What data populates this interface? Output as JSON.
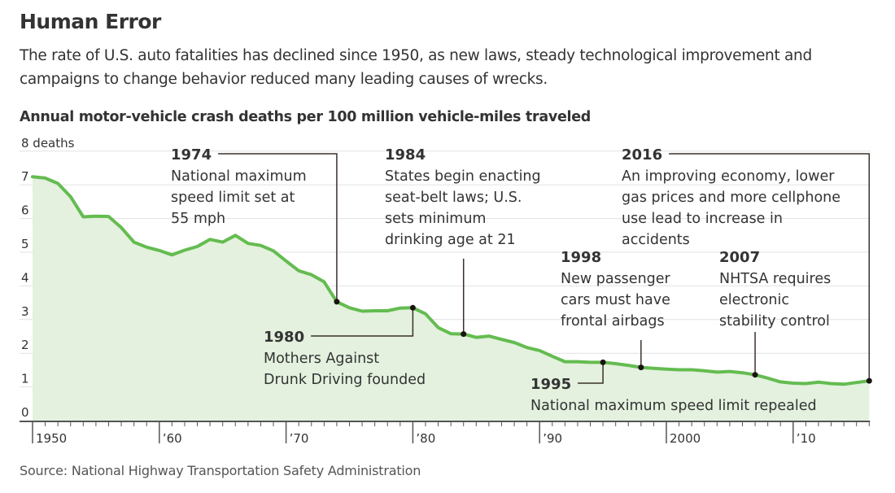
{
  "header": {
    "title": "Human Error",
    "subtitle": "The rate of U.S. auto fatalities has declined since 1950, as new laws, steady technological improvement and campaigns to change behavior reduced many leading causes of wrecks."
  },
  "footer": {
    "source": "Source: National Highway Transportation Safety Administration"
  },
  "colors": {
    "line": "#64bc50",
    "area": "#e3f1de",
    "annotation": "#3a302c",
    "grid": "#e2e2e2"
  },
  "chart_data": {
    "type": "area",
    "title": "Annual motor-vehicle crash deaths per 100 million vehicle-miles traveled",
    "xlabel": "",
    "ylabel": "",
    "xlim": [
      1950,
      2016
    ],
    "ylim": [
      0,
      8
    ],
    "grid": true,
    "y_ticks": [
      {
        "value": 0,
        "label": "0"
      },
      {
        "value": 1,
        "label": "1"
      },
      {
        "value": 2,
        "label": "2"
      },
      {
        "value": 3,
        "label": "3"
      },
      {
        "value": 4,
        "label": "4"
      },
      {
        "value": 5,
        "label": "5"
      },
      {
        "value": 6,
        "label": "6"
      },
      {
        "value": 7,
        "label": "7"
      },
      {
        "value": 8,
        "label": "8 deaths"
      }
    ],
    "x_ticks": [
      {
        "value": 1950,
        "label": "1950"
      },
      {
        "value": 1960,
        "label": "’60"
      },
      {
        "value": 1970,
        "label": "’70"
      },
      {
        "value": 1980,
        "label": "’80"
      },
      {
        "value": 1990,
        "label": "’90"
      },
      {
        "value": 2000,
        "label": "2000"
      },
      {
        "value": 2010,
        "label": "’10"
      }
    ],
    "x": [
      1950,
      1951,
      1952,
      1953,
      1954,
      1955,
      1956,
      1957,
      1958,
      1959,
      1960,
      1961,
      1962,
      1963,
      1964,
      1965,
      1966,
      1967,
      1968,
      1969,
      1970,
      1971,
      1972,
      1973,
      1974,
      1975,
      1976,
      1977,
      1978,
      1979,
      1980,
      1981,
      1982,
      1983,
      1984,
      1985,
      1986,
      1987,
      1988,
      1989,
      1990,
      1991,
      1992,
      1993,
      1994,
      1995,
      1996,
      1997,
      1998,
      1999,
      2000,
      2001,
      2002,
      2003,
      2004,
      2005,
      2006,
      2007,
      2008,
      2009,
      2010,
      2011,
      2012,
      2013,
      2014,
      2015,
      2016
    ],
    "series": [
      {
        "name": "Deaths per 100 million vehicle-miles",
        "values": [
          7.24,
          7.2,
          7.04,
          6.65,
          6.05,
          6.07,
          6.06,
          5.73,
          5.3,
          5.15,
          5.05,
          4.92,
          5.06,
          5.17,
          5.38,
          5.3,
          5.5,
          5.26,
          5.2,
          5.04,
          4.74,
          4.45,
          4.33,
          4.12,
          3.53,
          3.35,
          3.25,
          3.26,
          3.26,
          3.34,
          3.35,
          3.17,
          2.76,
          2.58,
          2.57,
          2.47,
          2.51,
          2.41,
          2.32,
          2.17,
          2.08,
          1.91,
          1.75,
          1.75,
          1.73,
          1.73,
          1.69,
          1.64,
          1.58,
          1.55,
          1.53,
          1.51,
          1.51,
          1.48,
          1.44,
          1.46,
          1.42,
          1.36,
          1.26,
          1.15,
          1.11,
          1.1,
          1.14,
          1.1,
          1.08,
          1.13,
          1.18
        ]
      }
    ],
    "annotations": [
      {
        "year": "1974",
        "x": 1974,
        "lines": [
          "National maximum",
          "speed limit set at",
          "55 mph"
        ]
      },
      {
        "year": "1980",
        "x": 1980,
        "lines": [
          "Mothers Against",
          "Drunk Driving founded"
        ]
      },
      {
        "year": "1984",
        "x": 1984,
        "lines": [
          "States begin enacting",
          "seat-belt laws; U.S.",
          "sets minimum",
          "drinking age at 21"
        ]
      },
      {
        "year": "1995",
        "x": 1995,
        "lines": [
          "National maximum speed limit repealed"
        ]
      },
      {
        "year": "1998",
        "x": 1998,
        "lines": [
          "New passenger",
          "cars must have",
          "frontal airbags"
        ]
      },
      {
        "year": "2007",
        "x": 2007,
        "lines": [
          "NHTSA requires",
          "electronic",
          "stability control"
        ]
      },
      {
        "year": "2016",
        "x": 2016,
        "lines": [
          "An improving economy, lower",
          "gas prices and more cellphone",
          "use lead to increase in",
          "accidents"
        ]
      }
    ]
  }
}
